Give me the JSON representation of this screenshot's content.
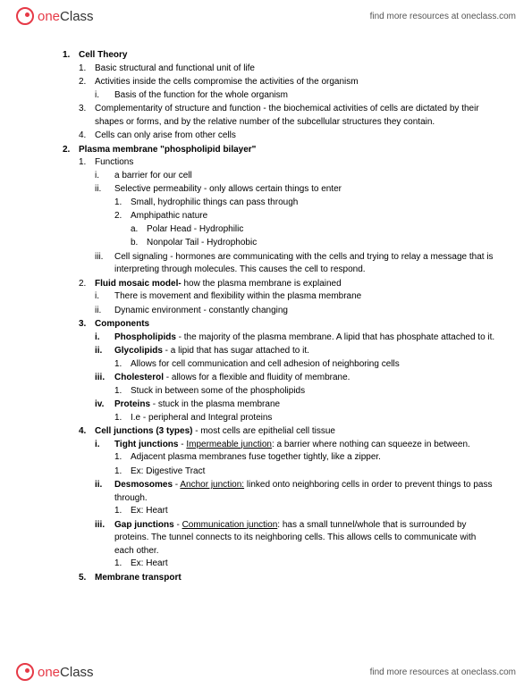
{
  "brand": {
    "part1": "one",
    "part2": "Class"
  },
  "tagline": "find more resources at oneclass.com",
  "h1": {
    "num": "1.",
    "title": "Cell Theory"
  },
  "h1_1": {
    "num": "1.",
    "text": "Basic structural and functional unit of life"
  },
  "h1_2": {
    "num": "2.",
    "text": "Activities inside the cells compromise the activities of the organism"
  },
  "h1_2_i": {
    "num": "i.",
    "text": "Basis of the function for the whole organism"
  },
  "h1_3": {
    "num": "3.",
    "text": "Complementarity of structure and function - the biochemical activities of cells are dictated by their shapes or forms, and by the relative number of the subcellular structures they contain."
  },
  "h1_4": {
    "num": "4.",
    "text": "Cells can only arise from other cells"
  },
  "h2": {
    "num": "2.",
    "title": "Plasma membrane \"phospholipid bilayer\""
  },
  "h2_1": {
    "num": "1.",
    "text": "Functions"
  },
  "h2_1_i": {
    "num": "i.",
    "text": "a barrier for our cell"
  },
  "h2_1_ii": {
    "num": "ii.",
    "text": "Selective permeability - only allows certain things to enter"
  },
  "h2_1_ii_1": {
    "num": "1.",
    "text": "Small, hydrophilic things can pass through"
  },
  "h2_1_ii_2": {
    "num": "2.",
    "text": "Amphipathic nature"
  },
  "h2_1_ii_2_a": {
    "num": "a.",
    "text": "Polar Head - Hydrophilic"
  },
  "h2_1_ii_2_b": {
    "num": "b.",
    "text": "Nonpolar Tail - Hydrophobic"
  },
  "h2_1_iii": {
    "num": "iii.",
    "text": "Cell signaling - hormones are communicating with the cells and trying to relay a message that is interpreting through molecules. This causes the cell to respond."
  },
  "h2_2": {
    "num": "2.",
    "bold": "Fluid mosaic model- ",
    "text": "how the plasma membrane is explained"
  },
  "h2_2_i": {
    "num": "i.",
    "text": "There is movement and flexibility within the plasma membrane"
  },
  "h2_2_ii": {
    "num": "ii.",
    "text": "Dynamic environment - constantly changing"
  },
  "h2_3": {
    "num": "3.",
    "bold": "Components"
  },
  "h2_3_i": {
    "num": "i.",
    "bold": "Phospholipids",
    "text": " - the majority of the plasma membrane. A lipid that has phosphate attached to it."
  },
  "h2_3_ii": {
    "num": "ii.",
    "bold": "Glycolipids",
    "text": " - a lipid that has sugar attached to it."
  },
  "h2_3_ii_1": {
    "num": "1.",
    "text": "Allows for cell communication and cell adhesion of neighboring cells"
  },
  "h2_3_iii": {
    "num": "iii.",
    "bold": "Cholesterol",
    "text": " - allows for a flexible and fluidity of membrane."
  },
  "h2_3_iii_1": {
    "num": "1.",
    "text": "Stuck in between some of the phospholipids"
  },
  "h2_3_iv": {
    "num": "iv.",
    "bold": "Proteins",
    "text": " - stuck in the plasma membrane"
  },
  "h2_3_iv_1": {
    "num": "1.",
    "text": "I.e - peripheral and Integral proteins"
  },
  "h2_4": {
    "num": "4.",
    "bold": "Cell junctions (3 types)",
    "text": " - most cells are epithelial cell tissue"
  },
  "h2_4_i": {
    "num": "i.",
    "bold": "Tight junctions",
    "dash": " - ",
    "under": "Impermeable junction",
    "text": ": a barrier where nothing can squeeze in between."
  },
  "h2_4_i_1": {
    "num": "1.",
    "text": "Adjacent plasma membranes fuse together tightly, like a zipper."
  },
  "h2_4_i_2": {
    "num": "1.",
    "text": "Ex: Digestive Tract"
  },
  "h2_4_ii": {
    "num": "ii.",
    "bold": "Desmosomes",
    "dash": " - ",
    "under": "Anchor junction:",
    "text": " linked onto neighboring cells in order to prevent things to pass through."
  },
  "h2_4_ii_1": {
    "num": "1.",
    "text": "Ex: Heart"
  },
  "h2_4_iii": {
    "num": "iii.",
    "bold": "Gap junctions",
    "dash": " - ",
    "under": "Communication junction",
    "text": ": has a small tunnel/whole that is surrounded by proteins. The tunnel connects to its neighboring cells. This allows cells to communicate with each other."
  },
  "h2_4_iii_1": {
    "num": "1.",
    "text": "Ex: Heart"
  },
  "h2_5": {
    "num": "5.",
    "bold": "Membrane transport"
  }
}
